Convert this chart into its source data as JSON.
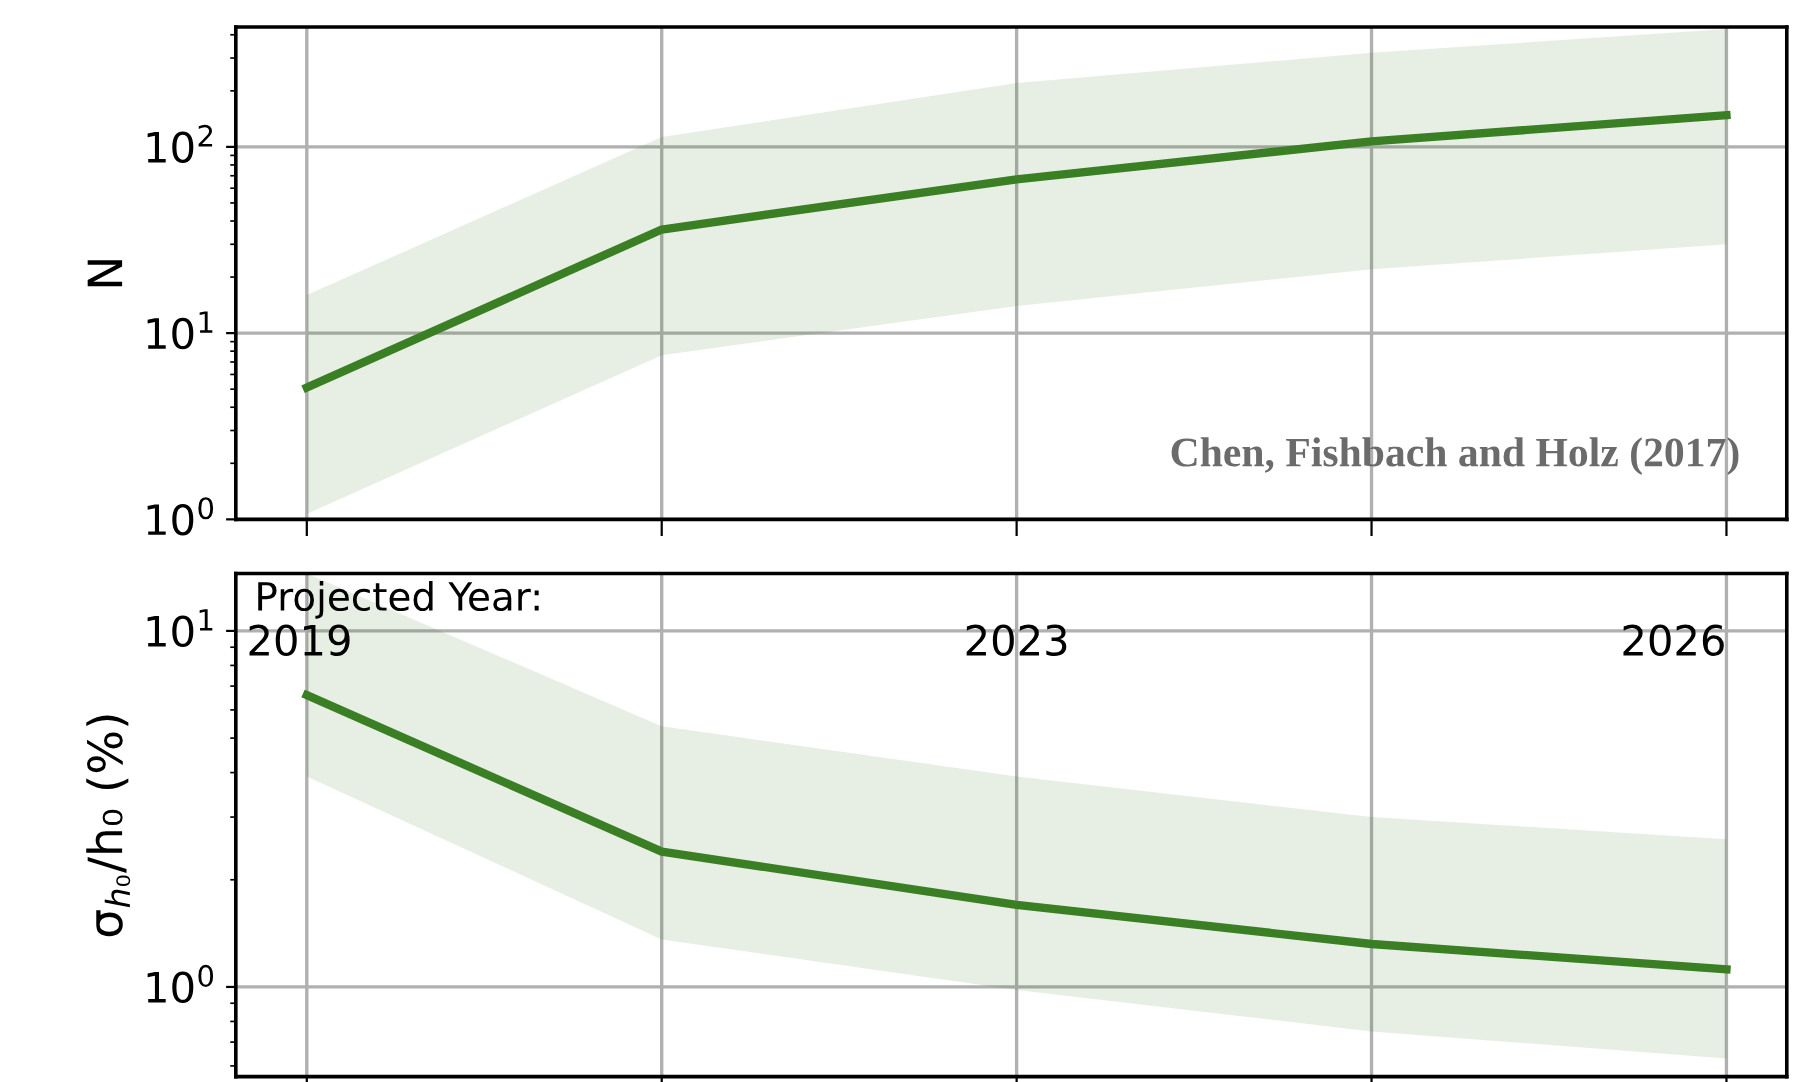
{
  "chart_data": [
    {
      "type": "line",
      "categories": [
        null,
        null,
        null,
        null,
        null
      ],
      "ylabel": "N",
      "log": true,
      "grid": true,
      "tick_labels": "y",
      "ylim": [
        1,
        440
      ],
      "yticks": [
        {
          "value": 1,
          "label": "10$^{0}$"
        },
        {
          "value": 10,
          "label": "10$^{1}$"
        },
        {
          "value": 100,
          "label": "10$^{2}$"
        }
      ],
      "series": [
        {
          "color": "#3a7f24",
          "values": [
            5.1,
            36,
            67,
            107,
            148
          ],
          "lower": [
            1.07,
            7.6,
            14,
            22,
            30
          ],
          "upper": [
            16,
            113,
            220,
            320,
            430
          ]
        }
      ],
      "annotations": [
        "Chen, Fishbach and Holz (2017)"
      ]
    },
    {
      "type": "line",
      "categories": [
        null,
        null,
        null,
        null,
        null
      ],
      "ylabel": "σ$_{h₀}$/h₀ (%)",
      "log": true,
      "grid": true,
      "tick_labels": "y",
      "ylim": [
        0.56,
        14.5
      ],
      "yticks": [
        {
          "value": 1,
          "label": "10$^{0}$"
        },
        {
          "value": 10,
          "label": "10$^{1}$"
        }
      ],
      "series": [
        {
          "color": "#3a7f24",
          "values": [
            6.6,
            2.4,
            1.7,
            1.32,
            1.12
          ],
          "lower": [
            3.9,
            1.36,
            0.98,
            0.75,
            0.63
          ],
          "upper": [
            14.5,
            5.4,
            3.9,
            3.0,
            2.6
          ]
        }
      ],
      "annotations": [
        "Projected Year:",
        "2019",
        "2023",
        "2026"
      ]
    }
  ]
}
